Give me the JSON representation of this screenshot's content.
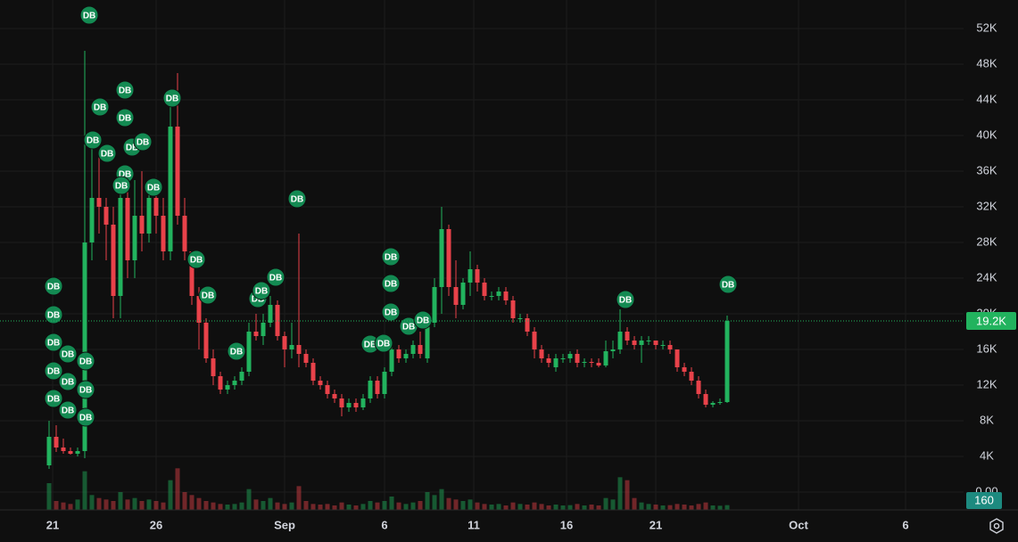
{
  "chart_data": {
    "type": "candlestick",
    "up_color": "#22b35e",
    "down_color": "#e9424a",
    "marker_color": "#138a52",
    "grid": true,
    "xlim": [
      -0.5,
      128.125
    ],
    "ylim": [
      0,
      55.2
    ],
    "volume_lim": [
      0,
      1500
    ],
    "xticks": [
      {
        "value": 0.5,
        "label": "21"
      },
      {
        "value": 15,
        "label": "26"
      },
      {
        "value": 33,
        "label": "Sep"
      },
      {
        "value": 47,
        "label": "6"
      },
      {
        "value": 59.5,
        "label": "11"
      },
      {
        "value": 72.5,
        "label": "16"
      },
      {
        "value": 85,
        "label": "21"
      },
      {
        "value": 105,
        "label": "Oct"
      },
      {
        "value": 120,
        "label": "6"
      }
    ],
    "yticks": [
      {
        "value": 0,
        "label": "0.00"
      },
      {
        "value": 4,
        "label": "4K"
      },
      {
        "value": 8,
        "label": "8K"
      },
      {
        "value": 12,
        "label": "12K"
      },
      {
        "value": 16,
        "label": "16K"
      },
      {
        "value": 20,
        "label": "20K"
      },
      {
        "value": 24,
        "label": "24K"
      },
      {
        "value": 28,
        "label": "28K"
      },
      {
        "value": 32,
        "label": "32K"
      },
      {
        "value": 36,
        "label": "36K"
      },
      {
        "value": 40,
        "label": "40K"
      },
      {
        "value": 44,
        "label": "44K"
      },
      {
        "value": 48,
        "label": "48K"
      },
      {
        "value": 52,
        "label": "52K"
      }
    ],
    "last_price_label": "19.2K",
    "candles": [
      [
        3,
        8,
        2.6,
        6.2
      ],
      [
        6.2,
        7.5,
        4.5,
        5
      ],
      [
        5,
        6,
        4.3,
        4.6
      ],
      [
        4.6,
        5,
        4.2,
        4.3
      ],
      [
        4.3,
        5,
        4,
        4.6
      ],
      [
        4.6,
        49.5,
        3.8,
        28
      ],
      [
        28,
        40,
        26,
        33
      ],
      [
        33,
        38,
        29,
        32
      ],
      [
        32,
        33,
        26,
        30
      ],
      [
        30,
        32,
        19.5,
        22
      ],
      [
        22,
        35,
        19.5,
        33
      ],
      [
        33,
        34,
        24,
        26
      ],
      [
        26,
        35,
        24,
        31
      ],
      [
        31,
        36,
        27,
        29
      ],
      [
        29,
        35,
        28,
        33
      ],
      [
        33,
        34,
        29,
        31
      ],
      [
        31,
        33,
        26,
        27
      ],
      [
        27,
        45,
        26,
        41
      ],
      [
        41,
        47,
        30,
        31
      ],
      [
        31,
        33,
        26,
        27
      ],
      [
        27,
        27,
        21,
        22
      ],
      [
        22,
        23,
        16,
        19
      ],
      [
        19,
        19.5,
        14.5,
        15
      ],
      [
        15,
        16,
        12,
        13
      ],
      [
        13,
        13.5,
        11,
        11.5
      ],
      [
        11.5,
        12.5,
        11,
        12
      ],
      [
        12,
        13,
        11.5,
        12.5
      ],
      [
        12.5,
        14,
        12,
        13.5
      ],
      [
        13.5,
        19,
        13,
        18
      ],
      [
        18,
        20,
        17,
        17.5
      ],
      [
        17.5,
        20,
        16.5,
        19
      ],
      [
        19,
        22,
        18.5,
        21
      ],
      [
        21,
        21.5,
        17,
        17.5
      ],
      [
        17.5,
        18,
        14,
        16
      ],
      [
        16,
        19,
        15,
        16.5
      ],
      [
        16.5,
        29,
        14,
        15.5
      ],
      [
        15.5,
        16,
        14,
        14.5
      ],
      [
        14.5,
        15,
        12,
        12.5
      ],
      [
        12.5,
        13,
        11.5,
        12
      ],
      [
        12,
        12.5,
        10.5,
        11
      ],
      [
        11,
        11.5,
        10,
        10.5
      ],
      [
        10.5,
        11,
        8.5,
        9.5
      ],
      [
        9.5,
        10.5,
        9,
        10
      ],
      [
        10,
        10.5,
        9,
        9.5
      ],
      [
        9.5,
        11,
        9.2,
        10.5
      ],
      [
        10.5,
        13,
        10,
        12.5
      ],
      [
        12.5,
        13,
        10.5,
        11
      ],
      [
        11,
        14,
        10.5,
        13.5
      ],
      [
        13.5,
        17,
        13,
        16
      ],
      [
        16,
        16.5,
        14.5,
        15
      ],
      [
        15,
        16,
        14.5,
        15.5
      ],
      [
        15.5,
        17,
        15,
        16.5
      ],
      [
        16.5,
        18,
        15,
        15.5
      ],
      [
        15,
        19.5,
        14.5,
        19
      ],
      [
        19,
        24,
        18.5,
        23
      ],
      [
        23,
        32,
        20,
        29.5
      ],
      [
        29.5,
        30,
        22,
        23
      ],
      [
        23,
        26,
        19.5,
        21
      ],
      [
        21,
        24,
        20.5,
        23.5
      ],
      [
        23.5,
        27,
        22,
        25
      ],
      [
        25,
        25.5,
        22.5,
        23.5
      ],
      [
        23.5,
        24,
        21.5,
        22
      ],
      [
        22,
        22.5,
        21.5,
        22
      ],
      [
        22,
        23,
        21.5,
        22.5
      ],
      [
        22.5,
        23,
        21,
        21.5
      ],
      [
        21.5,
        22,
        19,
        19.5
      ],
      [
        19.5,
        20,
        19,
        19.5
      ],
      [
        19.5,
        20,
        17.5,
        18
      ],
      [
        18,
        18.5,
        15,
        16
      ],
      [
        16,
        16.5,
        14.5,
        15
      ],
      [
        15,
        15.5,
        14,
        14.5
      ],
      [
        14,
        15.5,
        13.5,
        15
      ],
      [
        15,
        15.5,
        14.5,
        15
      ],
      [
        15,
        15.8,
        14.5,
        15.5
      ],
      [
        15.5,
        16,
        14,
        14.5
      ],
      [
        14.5,
        15,
        14,
        14.6
      ],
      [
        14.6,
        15,
        14,
        14.5
      ],
      [
        14.5,
        15,
        14,
        14.2
      ],
      [
        14.2,
        17,
        14,
        15.8
      ],
      [
        15.8,
        17,
        15,
        16
      ],
      [
        16,
        20.5,
        15.5,
        18
      ],
      [
        18,
        18.5,
        16.5,
        17
      ],
      [
        17,
        17.5,
        16,
        16.5
      ],
      [
        16.5,
        17.5,
        14.5,
        17
      ],
      [
        17,
        17.5,
        16.5,
        17
      ],
      [
        17,
        17,
        16,
        16.5
      ],
      [
        16.5,
        17,
        16,
        16.5
      ],
      [
        16.5,
        17,
        15.5,
        16
      ],
      [
        16,
        16,
        13.5,
        14
      ],
      [
        14,
        14.5,
        13,
        13.5
      ],
      [
        13.5,
        14,
        12,
        12.5
      ],
      [
        12.5,
        13,
        10.5,
        11
      ],
      [
        11,
        11.5,
        9.5,
        9.8
      ],
      [
        9.8,
        10.2,
        9.5,
        10
      ],
      [
        10,
        10.5,
        9.8,
        10.1
      ],
      [
        10.1,
        19.8,
        10,
        19.2
      ]
    ],
    "volumes": [
      900,
      300,
      250,
      200,
      350,
      1300,
      500,
      400,
      350,
      300,
      600,
      350,
      400,
      300,
      350,
      300,
      250,
      1000,
      1400,
      600,
      500,
      400,
      300,
      250,
      200,
      180,
      200,
      250,
      700,
      350,
      300,
      400,
      250,
      200,
      250,
      800,
      300,
      200,
      180,
      200,
      150,
      250,
      180,
      150,
      200,
      300,
      250,
      300,
      450,
      250,
      200,
      250,
      300,
      600,
      500,
      700,
      400,
      350,
      300,
      350,
      250,
      200,
      180,
      200,
      150,
      250,
      200,
      180,
      250,
      200,
      150,
      180,
      150,
      160,
      200,
      150,
      180,
      150,
      400,
      350,
      1100,
      1000,
      400,
      250,
      200,
      180,
      150,
      160,
      200,
      180,
      150,
      200,
      250,
      150,
      140,
      160
    ],
    "markers": [
      {
        "x": 5.63,
        "y": 53.5,
        "label": "DB"
      },
      {
        "x": 0.63,
        "y": 23.1,
        "label": "DB"
      },
      {
        "x": 0.63,
        "y": 19.9,
        "label": "DB"
      },
      {
        "x": 0.63,
        "y": 16.8,
        "label": "DB"
      },
      {
        "x": 0.63,
        "y": 13.6,
        "label": "DB"
      },
      {
        "x": 0.63,
        "y": 10.5,
        "label": "DB"
      },
      {
        "x": 2.63,
        "y": 15.5,
        "label": "DB"
      },
      {
        "x": 2.63,
        "y": 12.4,
        "label": "DB"
      },
      {
        "x": 2.63,
        "y": 9.2,
        "label": "DB"
      },
      {
        "x": 5.13,
        "y": 14.7,
        "label": "DB"
      },
      {
        "x": 5.13,
        "y": 11.5,
        "label": "DB"
      },
      {
        "x": 5.13,
        "y": 8.4,
        "label": "DB"
      },
      {
        "x": 6.13,
        "y": 39.5,
        "label": "DB"
      },
      {
        "x": 7.13,
        "y": 43.2,
        "label": "DB"
      },
      {
        "x": 8.13,
        "y": 38,
        "label": "DB"
      },
      {
        "x": 10.63,
        "y": 45.1,
        "label": "DB"
      },
      {
        "x": 10.63,
        "y": 42,
        "label": "DB"
      },
      {
        "x": 10.63,
        "y": 35.7,
        "label": "DB"
      },
      {
        "x": 10.13,
        "y": 34.4,
        "label": "DB"
      },
      {
        "x": 11.63,
        "y": 38.7,
        "label": "DB"
      },
      {
        "x": 13.13,
        "y": 39.3,
        "label": "DB"
      },
      {
        "x": 14.63,
        "y": 34.2,
        "label": "DB"
      },
      {
        "x": 17.25,
        "y": 44.2,
        "label": "DB"
      },
      {
        "x": 20.63,
        "y": 26.1,
        "label": "DB"
      },
      {
        "x": 22.25,
        "y": 22.1,
        "label": "DB"
      },
      {
        "x": 26.25,
        "y": 15.8,
        "label": "DB"
      },
      {
        "x": 29.25,
        "y": 21.7,
        "label": "DB"
      },
      {
        "x": 29.75,
        "y": 22.6,
        "label": "DB"
      },
      {
        "x": 31.75,
        "y": 24.1,
        "label": "DB"
      },
      {
        "x": 34.75,
        "y": 32.9,
        "label": "DB"
      },
      {
        "x": 45,
        "y": 16.6,
        "label": "DB"
      },
      {
        "x": 46.88,
        "y": 16.7,
        "label": "DB"
      },
      {
        "x": 47.88,
        "y": 26.4,
        "label": "DB"
      },
      {
        "x": 47.88,
        "y": 23.4,
        "label": "DB"
      },
      {
        "x": 47.88,
        "y": 20.2,
        "label": "DB"
      },
      {
        "x": 50.38,
        "y": 18.6,
        "label": "DB"
      },
      {
        "x": 52.38,
        "y": 19.3,
        "label": "DB"
      },
      {
        "x": 80.75,
        "y": 21.6,
        "label": "DB"
      },
      {
        "x": 95.13,
        "y": 23.3,
        "label": "DB"
      }
    ]
  }
}
